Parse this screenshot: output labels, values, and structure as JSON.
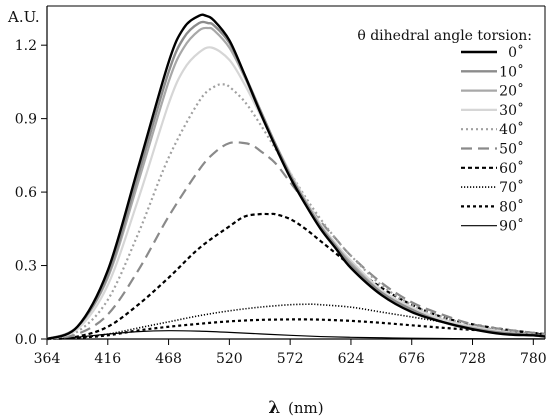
{
  "chart_data": {
    "type": "line",
    "title": "",
    "ylabel": "A.U.",
    "xlabel_symbol": "λ",
    "xlabel_unit": "(nm)",
    "xlim": [
      364,
      790
    ],
    "ylim": [
      0,
      1.36
    ],
    "x_ticks": [
      364,
      416,
      468,
      520,
      572,
      624,
      676,
      728,
      780
    ],
    "y_ticks": [
      0.0,
      0.3,
      0.6,
      0.9,
      1.2
    ],
    "y_tick_labels": [
      "0.0",
      "0.3",
      "0.6",
      "0.9",
      "1.2"
    ],
    "grid": false,
    "legend": {
      "position": "top-right",
      "title": "θ dihedral angle torsion:"
    },
    "series": [
      {
        "name": "0˚",
        "color": "#000000",
        "dash": "solid",
        "width": 2.4,
        "x": [
          364,
          390,
          416,
          442,
          468,
          481,
          494,
          500,
          507,
          520,
          533,
          546,
          559,
          572,
          585,
          598,
          611,
          624,
          650,
          676,
          702,
          728,
          754,
          780,
          790
        ],
        "y": [
          0,
          0.05,
          0.28,
          0.7,
          1.13,
          1.27,
          1.32,
          1.32,
          1.3,
          1.22,
          1.08,
          0.93,
          0.79,
          0.66,
          0.55,
          0.45,
          0.37,
          0.29,
          0.18,
          0.11,
          0.07,
          0.04,
          0.02,
          0.015,
          0.01
        ]
      },
      {
        "name": "10˚",
        "color": "#8c8c8c",
        "dash": "solid",
        "width": 2.4,
        "x": [
          364,
          390,
          416,
          442,
          468,
          481,
          494,
          502,
          507,
          520,
          533,
          546,
          559,
          572,
          585,
          598,
          611,
          624,
          650,
          676,
          702,
          728,
          754,
          780,
          790
        ],
        "y": [
          0,
          0.05,
          0.26,
          0.67,
          1.09,
          1.23,
          1.29,
          1.29,
          1.28,
          1.21,
          1.08,
          0.94,
          0.8,
          0.67,
          0.56,
          0.46,
          0.38,
          0.3,
          0.19,
          0.12,
          0.07,
          0.04,
          0.025,
          0.015,
          0.01
        ]
      },
      {
        "name": "20˚",
        "color": "#a8a8a8",
        "dash": "solid",
        "width": 2.2,
        "x": [
          364,
          390,
          416,
          442,
          468,
          481,
          494,
          502,
          507,
          520,
          533,
          546,
          559,
          572,
          585,
          598,
          611,
          624,
          650,
          676,
          702,
          728,
          754,
          780,
          790
        ],
        "y": [
          0,
          0.05,
          0.25,
          0.64,
          1.05,
          1.19,
          1.26,
          1.27,
          1.26,
          1.19,
          1.07,
          0.93,
          0.8,
          0.67,
          0.56,
          0.46,
          0.38,
          0.31,
          0.19,
          0.12,
          0.07,
          0.045,
          0.025,
          0.015,
          0.01
        ]
      },
      {
        "name": "30˚",
        "color": "#d6d6d6",
        "dash": "solid",
        "width": 2.2,
        "x": [
          364,
          390,
          416,
          442,
          468,
          481,
          494,
          505,
          520,
          533,
          546,
          559,
          572,
          585,
          598,
          611,
          624,
          650,
          676,
          702,
          728,
          754,
          780,
          790
        ],
        "y": [
          0,
          0.04,
          0.22,
          0.57,
          0.96,
          1.1,
          1.17,
          1.19,
          1.14,
          1.04,
          0.92,
          0.8,
          0.68,
          0.57,
          0.47,
          0.39,
          0.32,
          0.2,
          0.13,
          0.08,
          0.05,
          0.03,
          0.015,
          0.01
        ]
      },
      {
        "name": "40˚",
        "color": "#a0a0a0",
        "dash": "2,3",
        "width": 2.2,
        "x": [
          364,
          390,
          416,
          442,
          468,
          494,
          507,
          515,
          520,
          533,
          546,
          559,
          572,
          585,
          598,
          611,
          624,
          650,
          676,
          702,
          728,
          754,
          780,
          790
        ],
        "y": [
          0,
          0.03,
          0.16,
          0.43,
          0.74,
          0.97,
          1.03,
          1.04,
          1.03,
          0.97,
          0.88,
          0.78,
          0.68,
          0.58,
          0.49,
          0.41,
          0.34,
          0.22,
          0.14,
          0.09,
          0.055,
          0.035,
          0.02,
          0.015
        ]
      },
      {
        "name": "50˚",
        "color": "#8a8a8a",
        "dash": "11,6",
        "width": 2.2,
        "x": [
          364,
          390,
          416,
          442,
          468,
          494,
          507,
          520,
          533,
          540,
          546,
          559,
          572,
          585,
          598,
          611,
          624,
          650,
          676,
          702,
          728,
          754,
          780,
          790
        ],
        "y": [
          0,
          0.02,
          0.1,
          0.28,
          0.5,
          0.69,
          0.76,
          0.8,
          0.8,
          0.79,
          0.77,
          0.72,
          0.64,
          0.56,
          0.48,
          0.41,
          0.34,
          0.23,
          0.15,
          0.1,
          0.06,
          0.04,
          0.025,
          0.02
        ]
      },
      {
        "name": "60˚",
        "color": "#000000",
        "dash": "4,3",
        "width": 2.2,
        "x": [
          364,
          390,
          416,
          442,
          468,
          494,
          520,
          533,
          546,
          555,
          559,
          572,
          585,
          598,
          611,
          624,
          650,
          676,
          702,
          728,
          754,
          780,
          790
        ],
        "y": [
          0,
          0.01,
          0.05,
          0.14,
          0.25,
          0.37,
          0.46,
          0.5,
          0.51,
          0.51,
          0.51,
          0.49,
          0.45,
          0.4,
          0.35,
          0.3,
          0.21,
          0.14,
          0.09,
          0.06,
          0.04,
          0.025,
          0.02
        ]
      },
      {
        "name": "70˚",
        "color": "#000000",
        "dash": "1.2,1.8",
        "width": 1.6,
        "x": [
          364,
          390,
          416,
          442,
          468,
          494,
          520,
          546,
          572,
          590,
          598,
          624,
          650,
          676,
          702,
          728,
          754,
          780,
          790
        ],
        "y": [
          0,
          0.005,
          0.02,
          0.045,
          0.07,
          0.095,
          0.115,
          0.13,
          0.14,
          0.142,
          0.14,
          0.13,
          0.11,
          0.09,
          0.07,
          0.05,
          0.035,
          0.025,
          0.02
        ]
      },
      {
        "name": "80˚",
        "color": "#000000",
        "dash": "3,3",
        "width": 2.2,
        "x": [
          364,
          390,
          416,
          442,
          468,
          494,
          520,
          546,
          572,
          585,
          598,
          624,
          650,
          676,
          702,
          728,
          754,
          780,
          790
        ],
        "y": [
          0,
          0.005,
          0.015,
          0.035,
          0.05,
          0.062,
          0.072,
          0.078,
          0.08,
          0.08,
          0.079,
          0.074,
          0.066,
          0.056,
          0.046,
          0.037,
          0.029,
          0.022,
          0.018
        ]
      },
      {
        "name": "90˚",
        "color": "#000000",
        "dash": "solid",
        "width": 1.2,
        "x": [
          364,
          390,
          416,
          442,
          468,
          494,
          520,
          546,
          572,
          598,
          624,
          650,
          676,
          702,
          728,
          754,
          780,
          790
        ],
        "y": [
          0,
          0.008,
          0.02,
          0.03,
          0.034,
          0.032,
          0.027,
          0.021,
          0.015,
          0.01,
          0.007,
          0.005,
          0.003,
          0.002,
          0.001,
          0.0007,
          0.0004,
          0.0003
        ]
      }
    ]
  }
}
